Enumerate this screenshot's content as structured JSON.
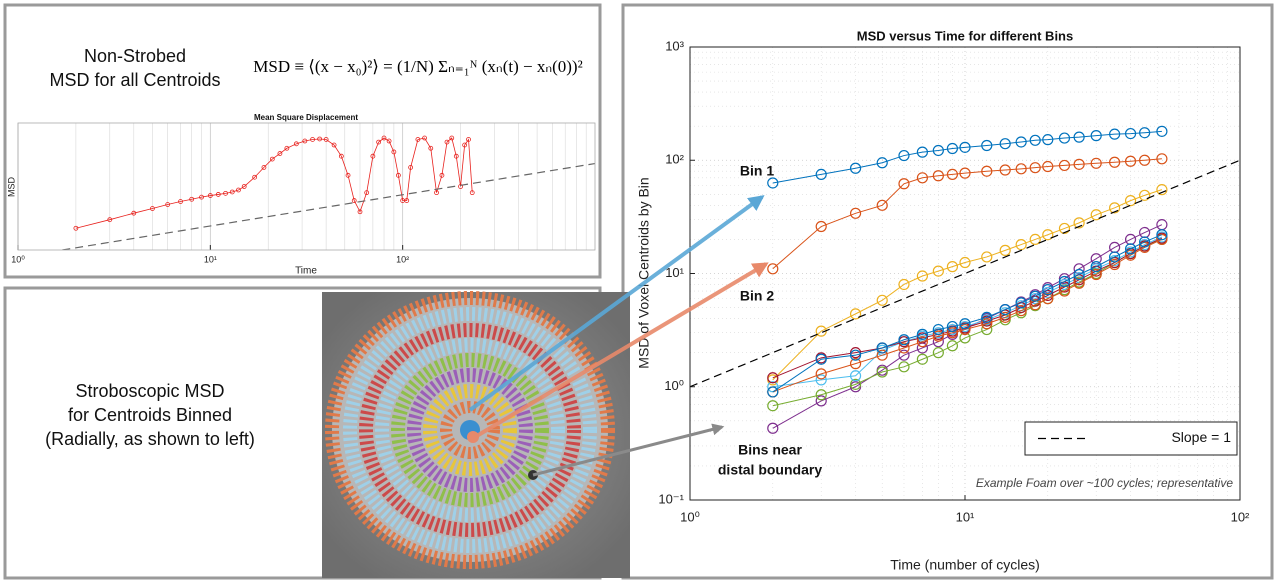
{
  "panels": {
    "non_strobed": {
      "title": [
        "Non-Strobed",
        "MSD for all Centroids"
      ],
      "equation": "MSD ≡ ⟨(x − x₀)²⟩ = (1/N) Σₙ₌₁ᴺ (xₙ(t) − xₙ(0))²"
    },
    "strobed": {
      "title": [
        "Stroboscopic MSD",
        "for Centroids Binned",
        "(Radially, as shown to left)"
      ]
    }
  },
  "chart_data": [
    {
      "type": "line",
      "title": "Mean Square Displacement",
      "xlabel": "Time",
      "ylabel": "MSD",
      "xscale": "log",
      "yscale": "log",
      "xlim": [
        1,
        1000
      ],
      "ylim": [
        1,
        100
      ],
      "xticks": [
        {
          "value": 1,
          "label": "10⁰"
        },
        {
          "value": 10,
          "label": "10¹"
        },
        {
          "value": 100,
          "label": "10²"
        }
      ],
      "grid": "x",
      "x": [
        2,
        3,
        4,
        5,
        6,
        7,
        8,
        9,
        10,
        11,
        12,
        13,
        14,
        15,
        17,
        19,
        21,
        23,
        25,
        28,
        31,
        34,
        37,
        40,
        44,
        48,
        52,
        56,
        60,
        65,
        70,
        75,
        80,
        85,
        90,
        95,
        100,
        105,
        110,
        120,
        130,
        140,
        150,
        160,
        170,
        180,
        190,
        200,
        210,
        220,
        230
      ],
      "series": [
        {
          "color": "#e8211d",
          "marker": "circle",
          "values": [
            2.2,
            3,
            3.8,
            4.5,
            5.2,
            5.8,
            6.3,
            6.8,
            7.2,
            7.5,
            7.8,
            8.2,
            8.8,
            10,
            14,
            20,
            27,
            33,
            40,
            47,
            52,
            55,
            56,
            55,
            45,
            30,
            15,
            6,
            4,
            8,
            30,
            50,
            58,
            52,
            35,
            15,
            6,
            6,
            20,
            55,
            58,
            40,
            8,
            15,
            50,
            58,
            30,
            10,
            45,
            55,
            8
          ]
        },
        {
          "color": "#666666",
          "dash": true,
          "x": [
            1.7,
            1000
          ],
          "values": [
            1,
            23
          ]
        }
      ]
    },
    {
      "type": "line",
      "title": "MSD versus Time for different Bins",
      "xlabel": "Time (number of cycles)",
      "ylabel": "MSD of Voxel Centroids by Bin",
      "xscale": "log",
      "yscale": "log",
      "xlim": [
        1,
        100
      ],
      "ylim": [
        0.1,
        1000
      ],
      "xticks": [
        {
          "value": 1,
          "label": "10⁰"
        },
        {
          "value": 10,
          "label": "10¹"
        },
        {
          "value": 100,
          "label": "10²"
        }
      ],
      "yticks": [
        {
          "value": 0.1,
          "label": "10⁻¹"
        },
        {
          "value": 1,
          "label": "10⁰"
        },
        {
          "value": 10,
          "label": "10¹"
        },
        {
          "value": 100,
          "label": "10²"
        },
        {
          "value": 1000,
          "label": "10³"
        }
      ],
      "grid": true,
      "legend": "lower right",
      "annotations": [
        "Bin 1",
        "Bin 2",
        "Bins near",
        "distal boundary"
      ],
      "note": "Example Foam over ~100 cycles; representative",
      "x": [
        2,
        3,
        4,
        5,
        6,
        7,
        8,
        9,
        10,
        12,
        14,
        16,
        18,
        20,
        23,
        26,
        30,
        35,
        40,
        45,
        52
      ],
      "series": [
        {
          "color": "#0072bd",
          "marker": "circle",
          "values": [
            63,
            75,
            85,
            95,
            110,
            118,
            122,
            127,
            130,
            135,
            140,
            145,
            150,
            152,
            157,
            160,
            165,
            170,
            172,
            175,
            180
          ]
        },
        {
          "color": "#d95319",
          "marker": "circle",
          "values": [
            11,
            26,
            34,
            40,
            62,
            70,
            73,
            75,
            77,
            80,
            82,
            84,
            86,
            88,
            90,
            92,
            94,
            96,
            98,
            100,
            103
          ]
        },
        {
          "color": "#edb120",
          "marker": "circle",
          "values": [
            1.15,
            3.1,
            4.4,
            5.8,
            8,
            9.5,
            10.5,
            11.5,
            12.5,
            14,
            16,
            18,
            20,
            22,
            25,
            28,
            33,
            38,
            44,
            49,
            55
          ]
        },
        {
          "color": "#7e2f8e",
          "marker": "circle",
          "values": [
            0.43,
            0.75,
            1.0,
            1.4,
            1.9,
            2.2,
            2.5,
            2.9,
            3.3,
            4.0,
            4.8,
            5.6,
            6.5,
            7.5,
            9,
            11,
            13.5,
            17,
            20,
            23,
            27
          ]
        },
        {
          "color": "#77ac30",
          "marker": "circle",
          "values": [
            0.68,
            0.85,
            1.05,
            1.35,
            1.5,
            1.75,
            2.0,
            2.3,
            2.7,
            3.2,
            3.9,
            4.5,
            5.2,
            6,
            7.2,
            8.4,
            10,
            12.5,
            15,
            17.5,
            20
          ]
        },
        {
          "color": "#4dbeee",
          "marker": "circle",
          "values": [
            1.0,
            1.15,
            1.25,
            2.1,
            2.5,
            2.8,
            3.0,
            3.2,
            3.4,
            3.9,
            4.5,
            5.2,
            6,
            6.8,
            8,
            9.2,
            11,
            13,
            15.5,
            18,
            21
          ]
        },
        {
          "color": "#a2142f",
          "marker": "circle",
          "values": [
            1.2,
            1.8,
            2.0,
            2.2,
            2.5,
            2.7,
            2.9,
            3.1,
            3.3,
            3.8,
            4.3,
            5,
            5.7,
            6.4,
            7.6,
            8.8,
            10.5,
            12.5,
            15,
            17.5,
            20.5
          ]
        },
        {
          "color": "#d95319",
          "marker": "circle",
          "values": [
            0.9,
            1.3,
            1.6,
            1.9,
            2.2,
            2.5,
            2.8,
            3.0,
            3.2,
            3.6,
            4.1,
            4.7,
            5.3,
            6,
            7,
            8.2,
            9.8,
            12,
            14.5,
            17,
            20
          ]
        },
        {
          "color": "#0072bd",
          "marker": "circle",
          "values": [
            0.9,
            1.75,
            1.9,
            2.2,
            2.6,
            2.9,
            3.2,
            3.4,
            3.6,
            4.1,
            4.8,
            5.5,
            6.3,
            7.2,
            8.5,
            9.8,
            11.5,
            14,
            16.5,
            19,
            22
          ]
        },
        {
          "name": "Slope = 1",
          "color": "#000000",
          "dash": true,
          "x": [
            1,
            100
          ],
          "values": [
            1,
            100
          ]
        }
      ]
    }
  ]
}
